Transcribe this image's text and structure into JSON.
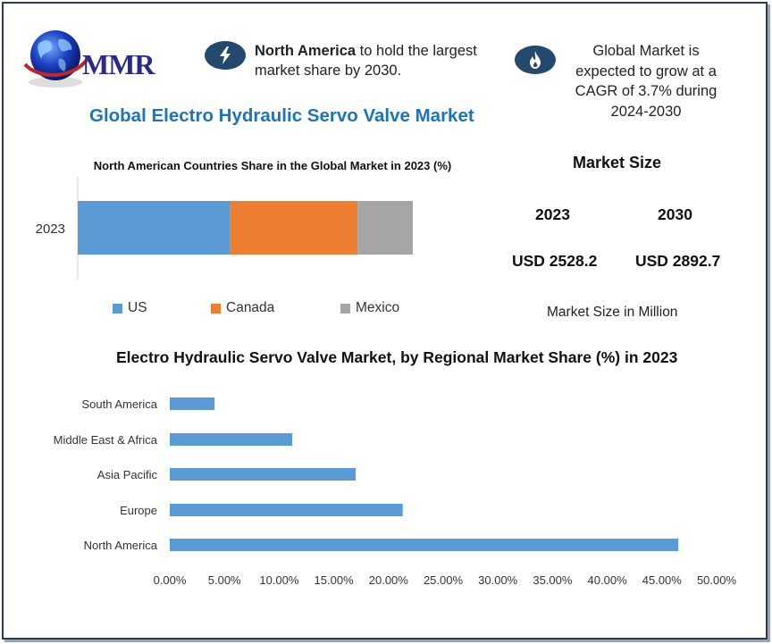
{
  "logo": {
    "text": "MMR"
  },
  "headline": {
    "bold": "North America",
    "rest": " to hold the largest market share by 2030."
  },
  "cagr_text": "Global Market is expected to grow at a CAGR of 3.7% during 2024-2030",
  "main_title": "Global Electro Hydraulic Servo Valve Market",
  "market_size": {
    "title": "Market Size",
    "years": [
      "2023",
      "2030"
    ],
    "values": [
      "USD 2528.2",
      "USD 2892.7"
    ],
    "note": "Market Size in Million"
  },
  "chart_data": [
    {
      "type": "bar",
      "orientation": "horizontal",
      "stacked": true,
      "title": "North American Countries Share in the Global Market in 2023 (%)",
      "categories": [
        "2023"
      ],
      "series": [
        {
          "name": "US",
          "values": [
            45.5
          ],
          "color": "#5b9bd5"
        },
        {
          "name": "Canada",
          "values": [
            38
          ],
          "color": "#ed7d31"
        },
        {
          "name": "Mexico",
          "values": [
            16.5
          ],
          "color": "#a5a5a5"
        }
      ],
      "legend": "bottom"
    },
    {
      "type": "bar",
      "orientation": "horizontal",
      "title": "Electro Hydraulic Servo Valve Market, by Regional Market Share (%) in 2023",
      "categories": [
        "North America",
        "Europe",
        "Asia Pacific",
        "Middle East & Africa",
        "South America"
      ],
      "values": [
        46.5,
        21.3,
        17.0,
        11.2,
        4.1
      ],
      "color": "#5b9bd5",
      "xlim": [
        0,
        50
      ],
      "xticks": [
        "0.00%",
        "5.00%",
        "10.00%",
        "15.00%",
        "20.00%",
        "25.00%",
        "30.00%",
        "35.00%",
        "40.00%",
        "45.00%",
        "50.00%"
      ]
    }
  ]
}
